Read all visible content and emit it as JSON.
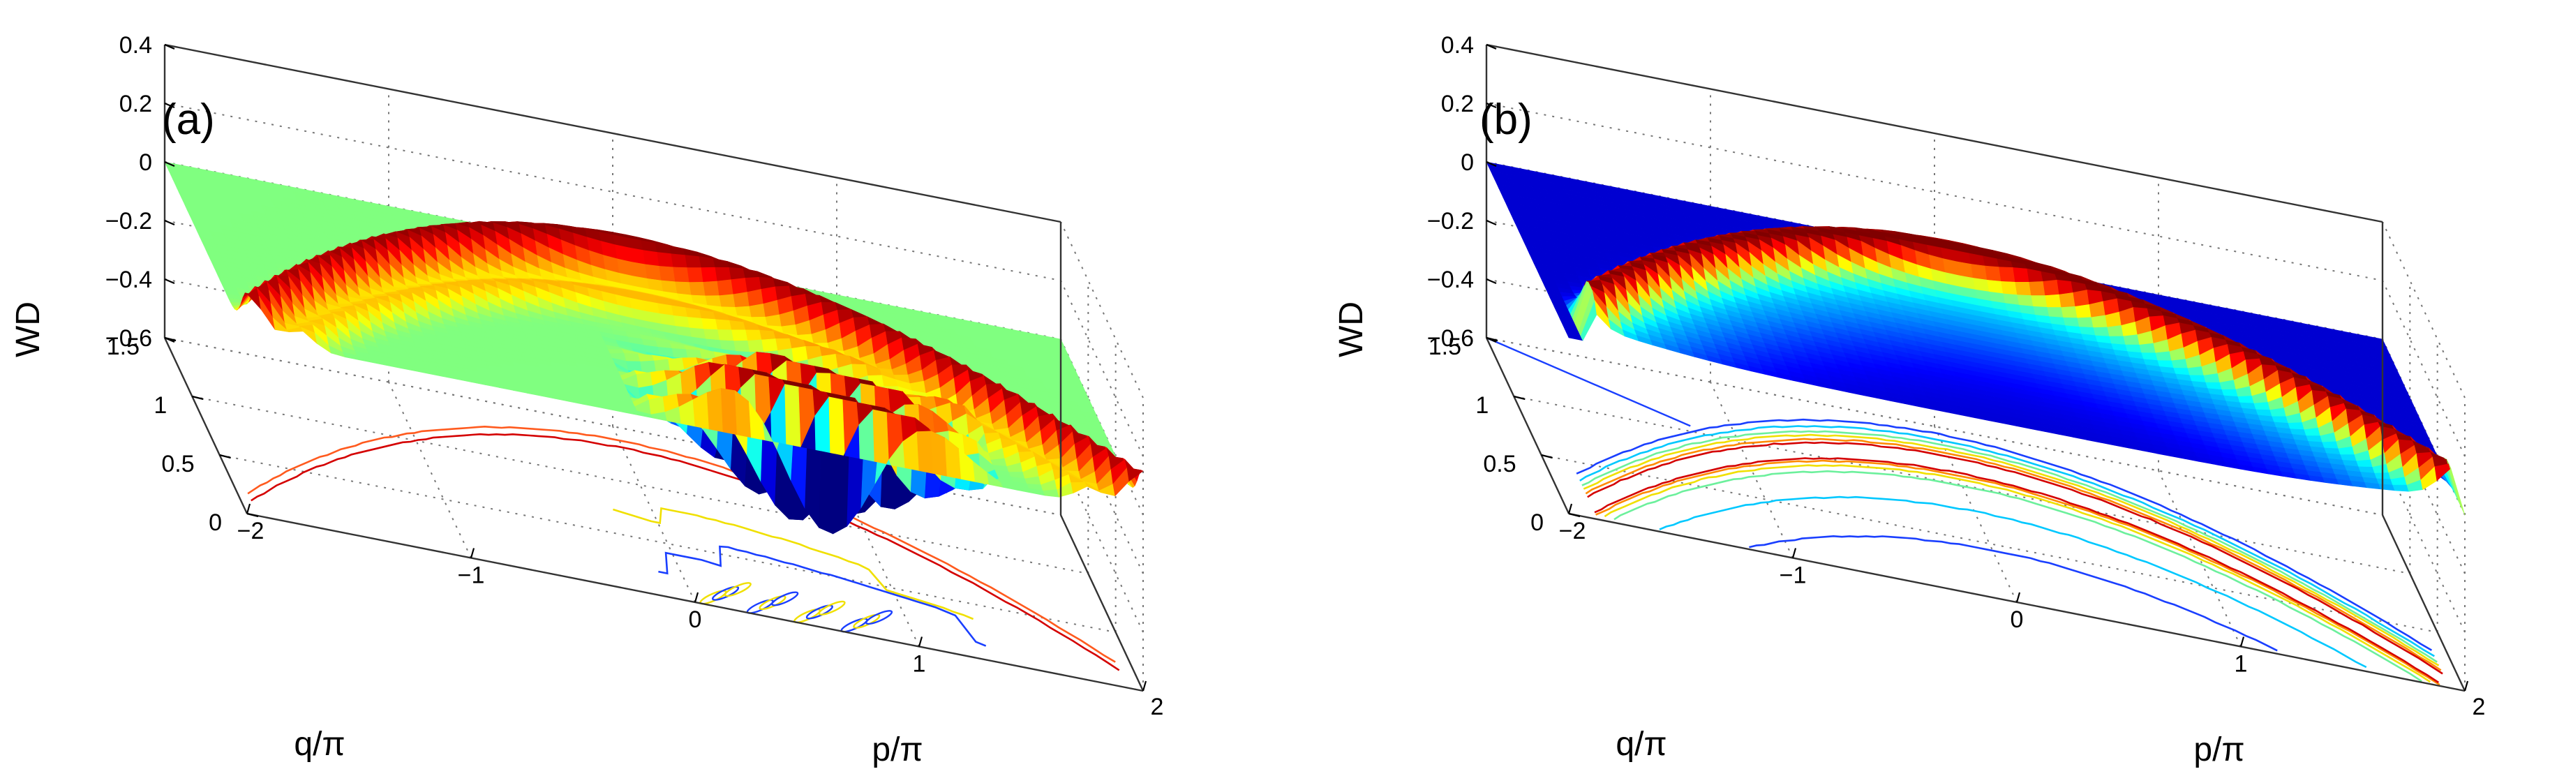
{
  "chart_data": [
    {
      "type": "surface3d",
      "panel_label": "(a)",
      "zlabel": "WD",
      "xlabel": "p/π",
      "ylabel": "q/π",
      "xlim": [
        -2,
        2
      ],
      "ylim": [
        0,
        1.5
      ],
      "zlim": [
        -0.6,
        0.4
      ],
      "x_ticks": [
        "−2",
        "−1",
        "0",
        "1",
        "2"
      ],
      "y_ticks": [
        "0",
        "0.5",
        "1",
        "1.5"
      ],
      "z_ticks": [
        "0.4",
        "0.2",
        "0",
        "−0.2",
        "−0.4",
        "−0.6"
      ],
      "grid": true,
      "colormap": "jet",
      "baseline": "green",
      "surface": {
        "description": "Wigner distribution with a positive parabolic ridge along q ≈ 1.25(1 − p²/4) and interference fringes toward large p",
        "peak_value": 0.15,
        "min_value": -0.45,
        "fringe_p_range": [
          0.0,
          1.0
        ]
      },
      "contours_on_floor": {
        "levels": [
          0.12,
          0.06,
          0.0,
          -0.05
        ],
        "colors": [
          "#d40000",
          "#ff5a1e",
          "#f0e000",
          "#1a3fff"
        ]
      }
    },
    {
      "type": "surface3d",
      "panel_label": "(b)",
      "zlabel": "WD",
      "xlabel": "p/π",
      "ylabel": "q/π",
      "xlim": [
        -2,
        2
      ],
      "ylim": [
        0,
        1.5
      ],
      "zlim": [
        -0.6,
        0.4
      ],
      "x_ticks": [
        "−2",
        "−1",
        "0",
        "1",
        "2"
      ],
      "y_ticks": [
        "0",
        "0.5",
        "1",
        "1.5"
      ],
      "z_ticks": [
        "0.4",
        "0.2",
        "0",
        "−0.2",
        "−0.4",
        "−0.6"
      ],
      "grid": true,
      "colormap": "jet",
      "baseline": "blue",
      "surface": {
        "description": "Smooth positive parabolic ridge along q ≈ 1.2(1 − p²/4), no interference fringes",
        "peak_value": 0.15,
        "min_value": 0.0
      },
      "contours_on_floor": {
        "levels": [
          0.01,
          0.03,
          0.06,
          0.09,
          0.12,
          0.14
        ],
        "colors": [
          "#1a3fff",
          "#00c8ff",
          "#6cf09c",
          "#f0e000",
          "#ff8a00",
          "#d40000"
        ]
      }
    }
  ]
}
